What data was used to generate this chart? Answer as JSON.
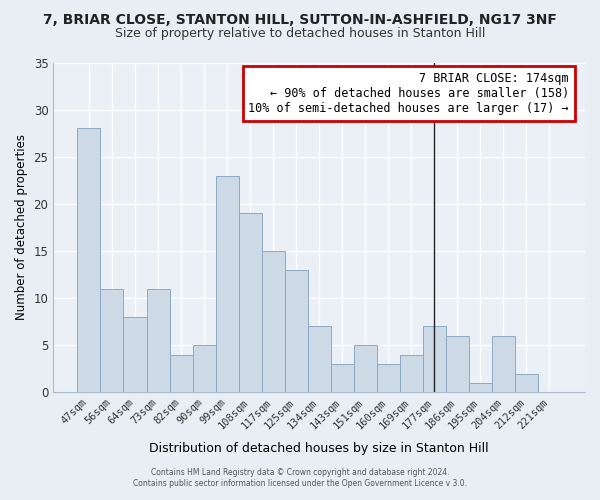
{
  "title": "7, BRIAR CLOSE, STANTON HILL, SUTTON-IN-ASHFIELD, NG17 3NF",
  "subtitle": "Size of property relative to detached houses in Stanton Hill",
  "xlabel": "Distribution of detached houses by size in Stanton Hill",
  "ylabel": "Number of detached properties",
  "bar_color": "#cdd9e5",
  "bar_edge_color": "#8aaac8",
  "categories": [
    "47sqm",
    "56sqm",
    "64sqm",
    "73sqm",
    "82sqm",
    "90sqm",
    "99sqm",
    "108sqm",
    "117sqm",
    "125sqm",
    "134sqm",
    "143sqm",
    "151sqm",
    "160sqm",
    "169sqm",
    "177sqm",
    "186sqm",
    "195sqm",
    "204sqm",
    "212sqm",
    "221sqm"
  ],
  "values": [
    28,
    11,
    8,
    11,
    4,
    5,
    23,
    19,
    15,
    13,
    7,
    3,
    5,
    3,
    4,
    7,
    6,
    1,
    6,
    2,
    0
  ],
  "ylim": [
    0,
    35
  ],
  "yticks": [
    0,
    5,
    10,
    15,
    20,
    25,
    30,
    35
  ],
  "vline_index": 15,
  "vline_color": "#222222",
  "annotation_text_line1": "7 BRIAR CLOSE: 174sqm",
  "annotation_text_line2": "← 90% of detached houses are smaller (158)",
  "annotation_text_line3": "10% of semi-detached houses are larger (17) →",
  "footer_line1": "Contains HM Land Registry data © Crown copyright and database right 2024.",
  "footer_line2": "Contains public sector information licensed under the Open Government Licence v 3.0.",
  "fig_bg_color": "#e8eef4",
  "plot_bg_color": "#eaf0f6",
  "grid_color": "#ffffff",
  "title_fontsize": 10,
  "subtitle_fontsize": 9,
  "annotation_box_color": "#cc0000"
}
